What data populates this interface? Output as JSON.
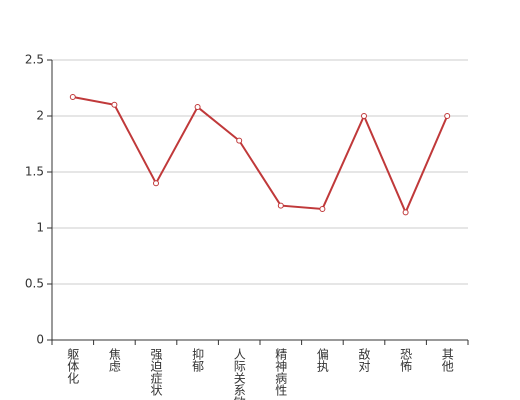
{
  "chart_data": {
    "type": "line",
    "categories": [
      "躯体化",
      "焦虑",
      "强迫症状",
      "抑郁",
      "人际关系敏感",
      "精神病性",
      "偏执",
      "敌对",
      "恐怖",
      "其他"
    ],
    "values": [
      2.17,
      2.1,
      1.4,
      2.08,
      1.78,
      1.2,
      1.17,
      2.0,
      1.14,
      2.0
    ],
    "color": "#c0393a",
    "ylim": [
      0,
      2.5
    ],
    "yticks": [
      0,
      0.5,
      1,
      1.5,
      2,
      2.5
    ],
    "grid": true
  }
}
